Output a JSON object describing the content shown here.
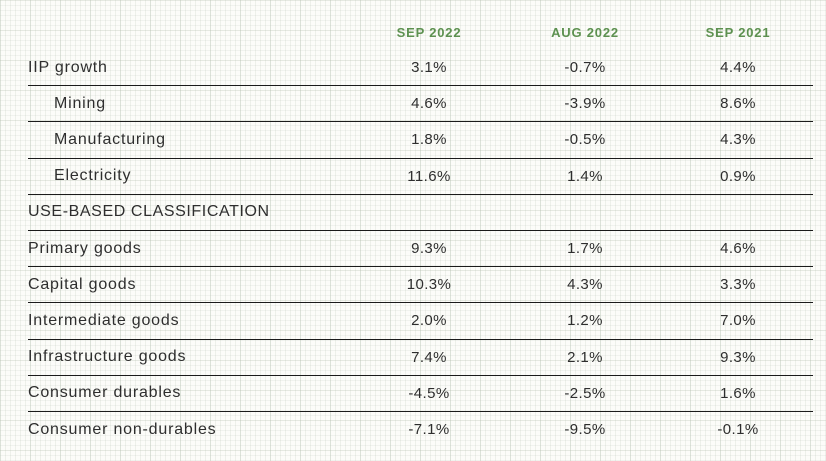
{
  "table": {
    "columns": [
      "SEP 2022",
      "AUG 2022",
      "SEP 2021"
    ],
    "rows": [
      {
        "label": "IIP growth",
        "type": "data",
        "indent": false,
        "values": [
          "3.1%",
          "-0.7%",
          "4.4%"
        ]
      },
      {
        "label": "Mining",
        "type": "data",
        "indent": true,
        "values": [
          "4.6%",
          "-3.9%",
          "8.6%"
        ]
      },
      {
        "label": "Manufacturing",
        "type": "data",
        "indent": true,
        "values": [
          "1.8%",
          "-0.5%",
          "4.3%"
        ]
      },
      {
        "label": "Electricity",
        "type": "data",
        "indent": true,
        "values": [
          "11.6%",
          "1.4%",
          "0.9%"
        ]
      },
      {
        "label": "USE-BASED CLASSIFICATION",
        "type": "section",
        "indent": false,
        "values": [
          "",
          "",
          ""
        ]
      },
      {
        "label": "Primary goods",
        "type": "data",
        "indent": false,
        "values": [
          "9.3%",
          "1.7%",
          "4.6%"
        ]
      },
      {
        "label": "Capital goods",
        "type": "data",
        "indent": false,
        "values": [
          "10.3%",
          "4.3%",
          "3.3%"
        ]
      },
      {
        "label": "Intermediate goods",
        "type": "data",
        "indent": false,
        "values": [
          "2.0%",
          "1.2%",
          "7.0%"
        ]
      },
      {
        "label": "Infrastructure goods",
        "type": "data",
        "indent": false,
        "values": [
          "7.4%",
          "2.1%",
          "9.3%"
        ]
      },
      {
        "label": "Consumer durables",
        "type": "data",
        "indent": false,
        "values": [
          "-4.5%",
          "-2.5%",
          "1.6%"
        ]
      },
      {
        "label": "Consumer non-durables",
        "type": "data",
        "indent": false,
        "values": [
          "-7.1%",
          "-9.5%",
          "-0.1%"
        ]
      }
    ]
  },
  "colors": {
    "column_header_green": "#5d9150",
    "text": "#2e2e2e",
    "rule_line": "#1b1b1b",
    "background": "#fcfcf9"
  },
  "chart_data": {
    "type": "table",
    "title": "IIP growth",
    "columns": [
      "SEP 2022",
      "AUG 2022",
      "SEP 2021"
    ],
    "unit": "%",
    "rows": [
      {
        "label": "IIP growth",
        "values": [
          3.1,
          -0.7,
          4.4
        ]
      },
      {
        "label": "Mining",
        "values": [
          4.6,
          -3.9,
          8.6
        ]
      },
      {
        "label": "Manufacturing",
        "values": [
          1.8,
          -0.5,
          4.3
        ]
      },
      {
        "label": "Electricity",
        "values": [
          11.6,
          1.4,
          0.9
        ]
      },
      {
        "label": "USE-BASED CLASSIFICATION",
        "values": null
      },
      {
        "label": "Primary goods",
        "values": [
          9.3,
          1.7,
          4.6
        ]
      },
      {
        "label": "Capital goods",
        "values": [
          10.3,
          4.3,
          3.3
        ]
      },
      {
        "label": "Intermediate goods",
        "values": [
          2.0,
          1.2,
          7.0
        ]
      },
      {
        "label": "Infrastructure goods",
        "values": [
          7.4,
          2.1,
          9.3
        ]
      },
      {
        "label": "Consumer durables",
        "values": [
          -4.5,
          -2.5,
          1.6
        ]
      },
      {
        "label": "Consumer non-durables",
        "values": [
          -7.1,
          -9.5,
          -0.1
        ]
      }
    ]
  }
}
